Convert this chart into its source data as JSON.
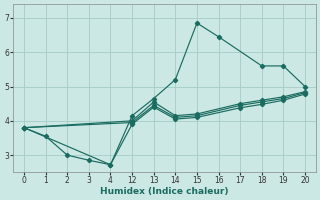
{
  "xlabel": "Humidex (Indice chaleur)",
  "bg_color": "#cce8e4",
  "grid_color": "#aacfcb",
  "line_color": "#1a6b60",
  "lines": [
    {
      "x": [
        0,
        1,
        2,
        3,
        4,
        12,
        13,
        14,
        15,
        16,
        18,
        19,
        20
      ],
      "y": [
        3.8,
        3.55,
        3.0,
        2.85,
        2.72,
        4.15,
        4.65,
        5.2,
        6.85,
        6.45,
        5.6,
        5.6,
        5.0
      ]
    },
    {
      "x": [
        0,
        12,
        13,
        14,
        15,
        17,
        18,
        19,
        20
      ],
      "y": [
        3.8,
        4.0,
        4.55,
        4.15,
        4.2,
        4.5,
        4.6,
        4.7,
        4.85
      ]
    },
    {
      "x": [
        0,
        12,
        13,
        14,
        15,
        17,
        18,
        19,
        20
      ],
      "y": [
        3.8,
        3.95,
        4.45,
        4.1,
        4.15,
        4.45,
        4.55,
        4.65,
        4.82
      ]
    },
    {
      "x": [
        0,
        4,
        12,
        13,
        14,
        15,
        17,
        18,
        19,
        20
      ],
      "y": [
        3.8,
        2.72,
        3.9,
        4.4,
        4.05,
        4.1,
        4.38,
        4.48,
        4.6,
        4.78
      ]
    }
  ],
  "real_xticks": [
    0,
    1,
    2,
    3,
    4,
    12,
    13,
    14,
    15,
    16,
    17,
    18,
    19,
    20
  ],
  "yticks": [
    3,
    4,
    5,
    6,
    7
  ],
  "ylim": [
    2.5,
    7.4
  ]
}
